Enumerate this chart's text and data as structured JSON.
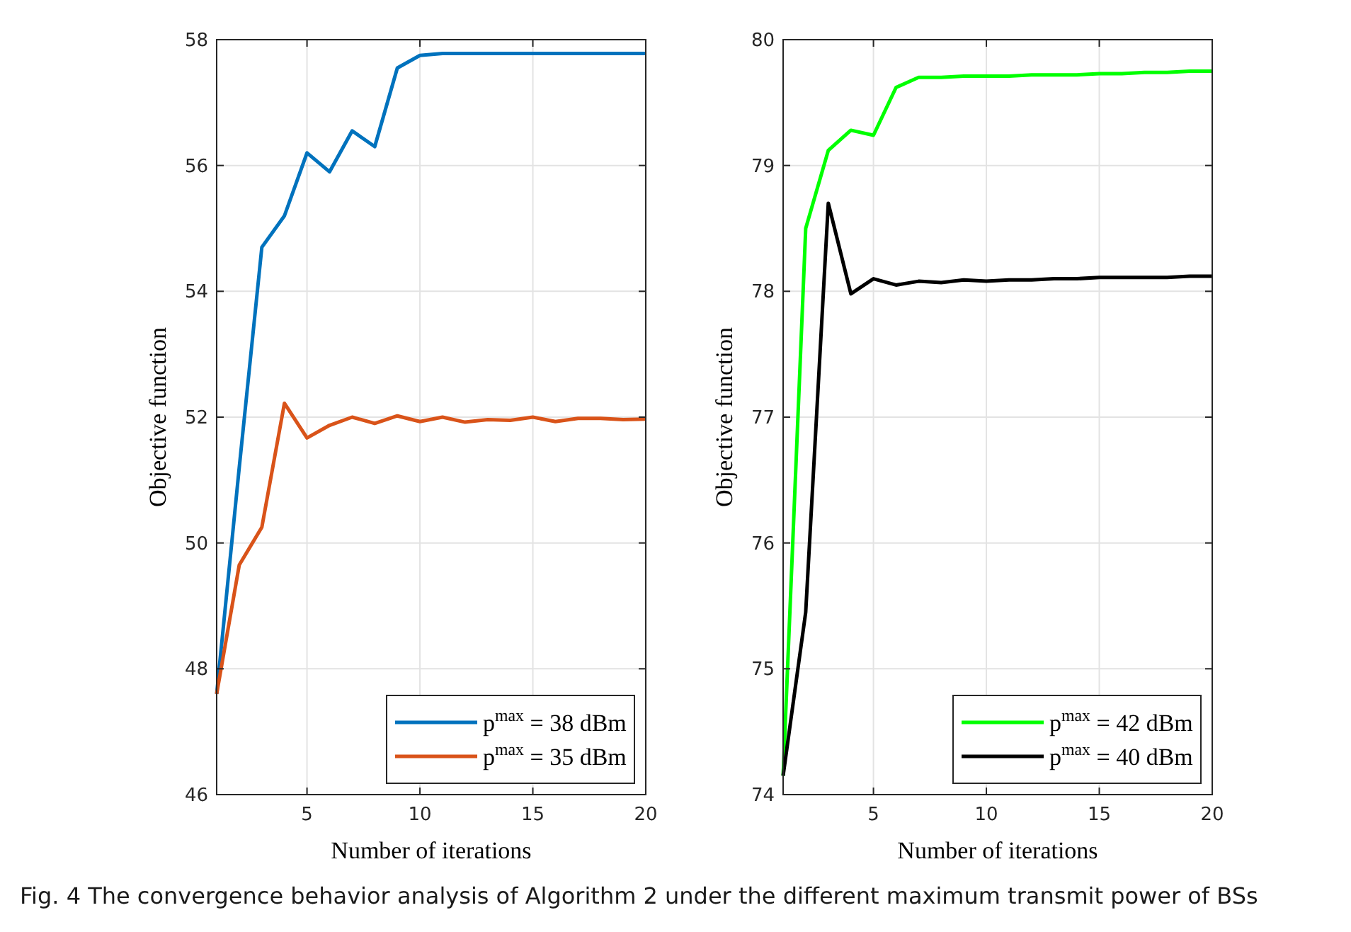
{
  "chart_data": [
    {
      "type": "line",
      "xlabel": "Number of iterations",
      "ylabel": "Objective function",
      "x": [
        1,
        2,
        3,
        4,
        5,
        6,
        7,
        8,
        9,
        10,
        11,
        12,
        13,
        14,
        15,
        16,
        17,
        18,
        19,
        20
      ],
      "xlim": [
        1,
        20
      ],
      "xticks": [
        5,
        10,
        15,
        20
      ],
      "ylim": [
        46,
        58
      ],
      "yticks": [
        46,
        48,
        50,
        52,
        54,
        56,
        58
      ],
      "grid": true,
      "legend": "bottom right",
      "line_style": "solid",
      "series": [
        {
          "name": "p$^{max}$ = 38 dBm",
          "color": "#0072bd",
          "values": [
            47.6,
            51.2,
            54.7,
            55.2,
            56.2,
            55.9,
            56.55,
            56.3,
            57.55,
            57.75,
            57.78,
            57.78,
            57.78,
            57.78,
            57.78,
            57.78,
            57.78,
            57.78,
            57.78,
            57.78
          ]
        },
        {
          "name": "p$^{max}$ = 35 dBm",
          "color": "#d95319",
          "values": [
            47.6,
            49.65,
            50.25,
            52.22,
            51.67,
            51.87,
            52.0,
            51.9,
            52.02,
            51.93,
            52.0,
            51.92,
            51.96,
            51.95,
            52.0,
            51.93,
            51.98,
            51.98,
            51.96,
            51.97
          ]
        }
      ],
      "annotations": [
        "Fig. 4  The convergence behavior analysis of Algorithm 2 under the different maximum transmit power of BSs"
      ]
    },
    {
      "type": "line",
      "xlabel": "Number of iterations",
      "ylabel": "Objective function",
      "x": [
        1,
        2,
        3,
        4,
        5,
        6,
        7,
        8,
        9,
        10,
        11,
        12,
        13,
        14,
        15,
        16,
        17,
        18,
        19,
        20
      ],
      "xlim": [
        1,
        20
      ],
      "xticks": [
        5,
        10,
        15,
        20
      ],
      "ylim": [
        74,
        80
      ],
      "yticks": [
        74,
        75,
        76,
        77,
        78,
        79,
        80
      ],
      "grid": true,
      "legend": "bottom right",
      "line_style": "solid",
      "series": [
        {
          "name": "p$^{max}$ = 42 dBm",
          "color": "#00ff00",
          "values": [
            74.15,
            78.5,
            79.12,
            79.28,
            79.24,
            79.62,
            79.7,
            79.7,
            79.71,
            79.71,
            79.71,
            79.72,
            79.72,
            79.72,
            79.73,
            79.73,
            79.74,
            79.74,
            79.75,
            79.75
          ]
        },
        {
          "name": "p$^{max}$ = 40 dBm",
          "color": "#000000",
          "values": [
            74.15,
            75.45,
            78.7,
            77.98,
            78.1,
            78.05,
            78.08,
            78.07,
            78.09,
            78.08,
            78.09,
            78.09,
            78.1,
            78.1,
            78.11,
            78.11,
            78.11,
            78.11,
            78.12,
            78.12
          ]
        }
      ]
    }
  ]
}
